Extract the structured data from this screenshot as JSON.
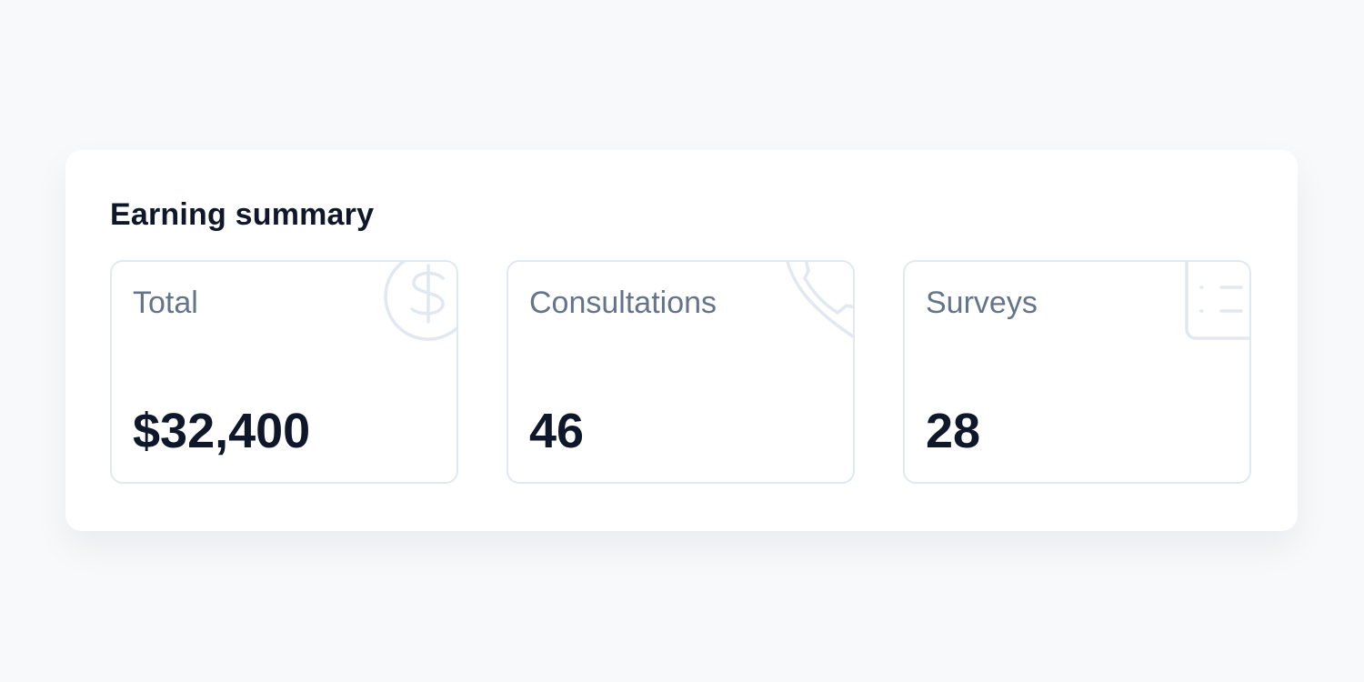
{
  "summary": {
    "title": "Earning summary",
    "cards": [
      {
        "label": "Total",
        "value": "$32,400",
        "icon": "dollar-icon"
      },
      {
        "label": "Consultations",
        "value": "46",
        "icon": "phone-icon"
      },
      {
        "label": "Surveys",
        "value": "28",
        "icon": "clipboard-list-icon"
      }
    ]
  },
  "colors": {
    "icon": "#e2e8f0",
    "label": "#64748b",
    "value": "#0f172a"
  }
}
